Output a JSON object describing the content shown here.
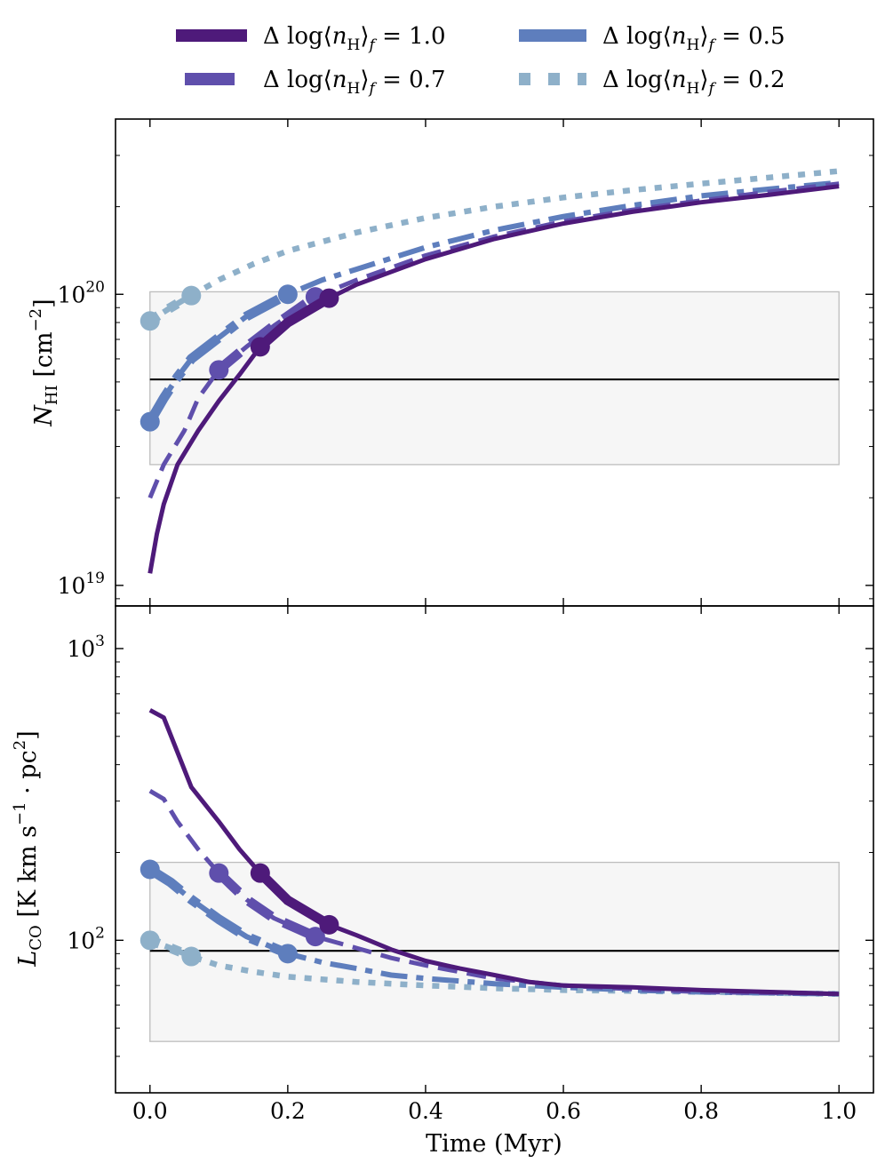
{
  "chart_data": [
    {
      "type": "line",
      "panel": "top",
      "title": "",
      "xlabel": "",
      "ylabel_main": "N",
      "ylabel_sub": "HI",
      "ylabel_unit": "[cm",
      "ylabel_unit_sup": "−2",
      "ylabel_unit_close": "]",
      "yscale": "log",
      "ylim": [
        8.5e+18,
        4e+20
      ],
      "xlim": [
        -0.05,
        1.05
      ],
      "ytick_labels": [
        {
          "value": 1e+19,
          "base": "10",
          "exp": "19"
        },
        {
          "value": 1e+20,
          "base": "10",
          "exp": "20"
        }
      ],
      "reference_line": 5.1e+19,
      "shaded_band": [
        2.6e+19,
        1.02e+20
      ],
      "series": [
        {
          "name": "Δ log⟨nH⟩f = 1.0",
          "x": [
            0.0,
            0.01,
            0.02,
            0.04,
            0.07,
            0.1,
            0.13,
            0.16,
            0.2,
            0.26,
            0.3,
            0.4,
            0.5,
            0.6,
            0.7,
            0.8,
            0.9,
            1.0
          ],
          "y": [
            1.1e+19,
            1.5e+19,
            1.9e+19,
            2.6e+19,
            3.4e+19,
            4.3e+19,
            5.3e+19,
            6.6e+19,
            8e+19,
            9.7e+19,
            1.08e+20,
            1.32e+20,
            1.55e+20,
            1.75e+20,
            1.92e+20,
            2.07e+20,
            2.2e+20,
            2.35e+20
          ],
          "thick_until": 0.26,
          "markers": [
            0.16,
            0.26
          ]
        },
        {
          "name": "Δ log⟨nH⟩f = 0.7",
          "x": [
            0.0,
            0.02,
            0.05,
            0.07,
            0.1,
            0.14,
            0.18,
            0.24,
            0.3,
            0.4,
            0.5,
            0.6,
            0.7,
            0.8,
            0.9,
            1.0
          ],
          "y": [
            2e+19,
            2.6e+19,
            3.4e+19,
            4.4e+19,
            5.5e+19,
            6.6e+19,
            7.8e+19,
            9.8e+19,
            1.12e+20,
            1.36e+20,
            1.58e+20,
            1.78e+20,
            1.95e+20,
            2.1e+20,
            2.25e+20,
            2.4e+20
          ],
          "thick_until": 0.24,
          "markers": [
            0.1,
            0.24
          ]
        },
        {
          "name": "Δ log⟨nH⟩f = 0.5",
          "x": [
            0.0,
            0.02,
            0.04,
            0.06,
            0.1,
            0.14,
            0.2,
            0.25,
            0.3,
            0.4,
            0.5,
            0.6,
            0.7,
            0.8,
            0.9,
            1.0
          ],
          "y": [
            3.65e+19,
            4.4e+19,
            5.2e+19,
            6e+19,
            7.1e+19,
            8.4e+19,
            1e+20,
            1.12e+20,
            1.22e+20,
            1.45e+20,
            1.66e+20,
            1.85e+20,
            2.02e+20,
            2.18e+20,
            2.3e+20,
            2.42e+20
          ],
          "thick_until": 0.2,
          "markers": [
            0.0,
            0.2
          ]
        },
        {
          "name": "Δ log⟨nH⟩f = 0.2",
          "x": [
            0.0,
            0.03,
            0.06,
            0.1,
            0.15,
            0.2,
            0.3,
            0.4,
            0.5,
            0.6,
            0.7,
            0.8,
            0.9,
            1.0
          ],
          "y": [
            8.1e+19,
            9e+19,
            9.9e+19,
            1.12e+20,
            1.27e+20,
            1.41e+20,
            1.63e+20,
            1.83e+20,
            2e+20,
            2.15e+20,
            2.28e+20,
            2.4e+20,
            2.52e+20,
            2.65e+20
          ],
          "thick_until": 0.06,
          "markers": [
            0.0,
            0.06
          ]
        }
      ]
    },
    {
      "type": "line",
      "panel": "bottom",
      "title": "",
      "xlabel": "Time (Myr)",
      "ylabel_main": "L",
      "ylabel_sub": "CO",
      "ylabel_unit": "[K km s",
      "ylabel_unit_sup": "−1",
      "ylabel_unit_mid": " · pc",
      "ylabel_unit_sup2": "2",
      "ylabel_unit_close": "]",
      "yscale": "log",
      "ylim": [
        30,
        1400
      ],
      "xlim": [
        -0.05,
        1.05
      ],
      "xtick_labels": [
        "0.0",
        "0.2",
        "0.4",
        "0.6",
        "0.8",
        "1.0"
      ],
      "ytick_labels": [
        {
          "value": 100,
          "base": "10",
          "exp": "2"
        },
        {
          "value": 1000,
          "base": "10",
          "exp": "3"
        }
      ],
      "reference_line": 92,
      "shaded_band": [
        45,
        185
      ],
      "series": [
        {
          "name": "Δ log⟨nH⟩f = 1.0",
          "x": [
            0.0,
            0.02,
            0.06,
            0.1,
            0.13,
            0.16,
            0.2,
            0.26,
            0.3,
            0.35,
            0.4,
            0.45,
            0.5,
            0.55,
            0.6,
            0.7,
            0.8,
            0.9,
            1.0
          ],
          "y": [
            615,
            580,
            335,
            255,
            205,
            170,
            137,
            113,
            104,
            93,
            85,
            80,
            76,
            72,
            70,
            69,
            67.5,
            66.5,
            65.5
          ],
          "thick_until": 0.26,
          "markers": [
            0.16,
            0.26
          ]
        },
        {
          "name": "Δ log⟨nH⟩f = 0.7",
          "x": [
            0.0,
            0.02,
            0.04,
            0.07,
            0.1,
            0.14,
            0.18,
            0.24,
            0.3,
            0.35,
            0.4,
            0.5,
            0.6,
            0.7,
            0.8,
            0.9,
            1.0
          ],
          "y": [
            325,
            305,
            255,
            205,
            170,
            138,
            119,
            103,
            94,
            87,
            82,
            74,
            70,
            68,
            66.5,
            66,
            65.5
          ],
          "thick_until": 0.24,
          "markers": [
            0.1,
            0.24
          ]
        },
        {
          "name": "Δ log⟨nH⟩f = 0.5",
          "x": [
            0.0,
            0.03,
            0.06,
            0.1,
            0.14,
            0.2,
            0.25,
            0.3,
            0.35,
            0.4,
            0.5,
            0.6,
            0.7,
            0.8,
            0.9,
            1.0
          ],
          "y": [
            175,
            158,
            138,
            118,
            103,
            90,
            84,
            80,
            76,
            74,
            71,
            69,
            67.5,
            66.5,
            66,
            65.5
          ],
          "thick_until": 0.2,
          "markers": [
            0.0,
            0.2
          ]
        },
        {
          "name": "Δ log⟨nH⟩f = 0.2",
          "x": [
            0.0,
            0.03,
            0.06,
            0.1,
            0.15,
            0.2,
            0.3,
            0.4,
            0.5,
            0.6,
            0.7,
            0.8,
            0.9,
            1.0
          ],
          "y": [
            100,
            94,
            88,
            82,
            78,
            75,
            72,
            70,
            68.5,
            67.5,
            67,
            66.5,
            66,
            65.5
          ],
          "thick_until": 0.06,
          "markers": [
            0.0,
            0.06
          ]
        }
      ]
    }
  ],
  "legend": {
    "placement": "top",
    "items": [
      {
        "label_prefix": "Δ log⟨n",
        "label_sub": "H",
        "label_mid": "⟩",
        "label_sub2": "f",
        "label_value": " = 1.0",
        "color": "#4e1a7a",
        "style": "solid"
      },
      {
        "label_prefix": "Δ log⟨n",
        "label_sub": "H",
        "label_mid": "⟩",
        "label_sub2": "f",
        "label_value": " = 0.7",
        "color": "#5f4fac",
        "style": "dashed"
      },
      {
        "label_prefix": "Δ log⟨n",
        "label_sub": "H",
        "label_mid": "⟩",
        "label_sub2": "f",
        "label_value": " = 0.5",
        "color": "#5e7ebd",
        "style": "dashdot"
      },
      {
        "label_prefix": "Δ log⟨n",
        "label_sub": "H",
        "label_mid": "⟩",
        "label_sub2": "f",
        "label_value": " = 0.2",
        "color": "#8eb0c9",
        "style": "dotted"
      }
    ]
  },
  "colors": {
    "band_fill": "#f6f6f6",
    "band_edge": "#bdbdbd",
    "reference_line": "#000000"
  }
}
